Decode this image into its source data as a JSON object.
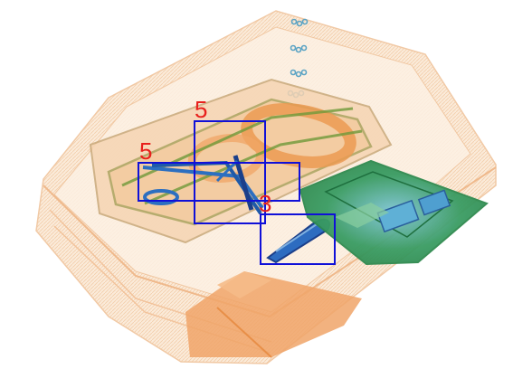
{
  "image": {
    "kind": "x-ray baggage scan",
    "palette": {
      "organic": "#f0a468",
      "organic_light": "#f7dcc0",
      "metal": "#2c6fc0",
      "metal_dark": "#1b3f8a",
      "electronics": "#3aa35a",
      "background": "#ffffff"
    }
  },
  "detections": [
    {
      "label": "5",
      "color": "#1010d8",
      "label_color": "#e8201c"
    },
    {
      "label": "5",
      "color": "#1010d8",
      "label_color": "#e8201c"
    },
    {
      "label": "3",
      "color": "#1010d8",
      "label_color": "#e8201c"
    }
  ]
}
